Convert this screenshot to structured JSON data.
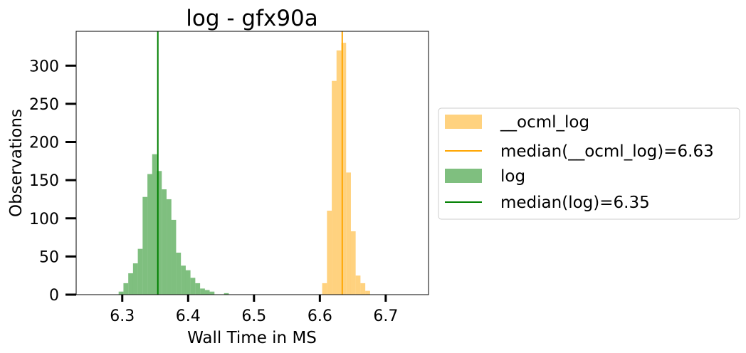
{
  "chart_data": {
    "type": "bar",
    "title": "log - gfx90a",
    "xlabel": "Wall Time in MS",
    "ylabel": "Observations",
    "xlim": [
      6.23,
      6.765
    ],
    "ylim": [
      0,
      345
    ],
    "xticks": [
      6.3,
      6.4,
      6.5,
      6.6,
      6.7
    ],
    "yticks": [
      0,
      50,
      100,
      150,
      200,
      250,
      300
    ],
    "xtick_labels": [
      "6.3",
      "6.4",
      "6.5",
      "6.6",
      "6.7"
    ],
    "ytick_labels": [
      "0",
      "50",
      "100",
      "150",
      "200",
      "250",
      "300"
    ],
    "grid": false,
    "legend_position": "right-outside",
    "bin_width": 0.00727,
    "series": [
      {
        "name": "__ocml_log",
        "color": "#ffa500",
        "opacity": 0.5,
        "bin_starts": [
          6.6035,
          6.6108,
          6.6181,
          6.6253,
          6.6326,
          6.6399,
          6.6471,
          6.6544,
          6.6617,
          6.669
        ],
        "counts": [
          15,
          110,
          280,
          320,
          330,
          160,
          83,
          25,
          15,
          5
        ],
        "median": 6.634,
        "median_label": "median(__ocml_log)=6.63",
        "median_color": "#ffa500"
      },
      {
        "name": "log",
        "color": "#008000",
        "opacity": 0.5,
        "bin_starts": [
          6.2945,
          6.3018,
          6.3091,
          6.3163,
          6.3236,
          6.3309,
          6.3382,
          6.3454,
          6.3527,
          6.36,
          6.3673,
          6.3745,
          6.3818,
          6.3891,
          6.3963,
          6.4036,
          6.4109,
          6.4182,
          6.4254,
          6.4327,
          6.4545
        ],
        "counts": [
          4,
          15,
          28,
          41,
          60,
          128,
          158,
          184,
          162,
          138,
          125,
          98,
          55,
          38,
          32,
          22,
          15,
          8,
          6,
          4,
          2
        ],
        "median": 6.354,
        "median_label": "median(log)=6.35",
        "median_color": "#008000"
      }
    ],
    "legend": [
      {
        "kind": "patch",
        "label": "__ocml_log",
        "color": "#ffa500"
      },
      {
        "kind": "line",
        "label": "median(__ocml_log)=6.63",
        "color": "#ffa500"
      },
      {
        "kind": "patch",
        "label": "log",
        "color": "#008000"
      },
      {
        "kind": "line",
        "label": "median(log)=6.35",
        "color": "#008000"
      }
    ]
  }
}
